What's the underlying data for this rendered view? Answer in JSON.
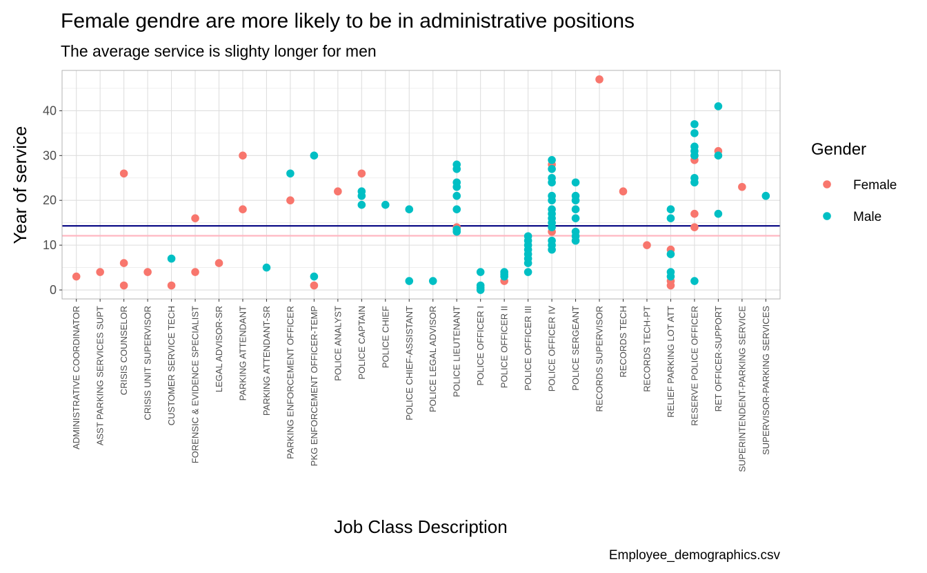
{
  "chart_data": {
    "type": "scatter",
    "title": "Female gendre are more likely to be in administrative positions",
    "subtitle": "The average service is slighty longer for men",
    "xlabel": "Job Class Description",
    "ylabel": "Year of service",
    "caption": "Employee_demographics.csv",
    "ylim": [
      -2,
      49
    ],
    "yticks": [
      0,
      10,
      20,
      30,
      40
    ],
    "grid": true,
    "legend": {
      "title": "Gender",
      "position": "right"
    },
    "categories": [
      "ADMINISTRATIVE COORDINATOR",
      "ASST PARKING SERVICES SUPT",
      "CRISIS COUNSELOR",
      "CRISIS UNIT SUPERVISOR",
      "CUSTOMER SERVICE TECH",
      "FORENSIC & EVIDENCE SPECIALIST",
      "LEGAL ADVISOR-SR",
      "PARKING ATTENDANT",
      "PARKING ATTENDANT-SR",
      "PARKING ENFORCEMENT OFFICER",
      "PKG ENFORCEMENT OFFICER-TEMP",
      "POLICE ANALYST",
      "POLICE CAPTAIN",
      "POLICE CHIEF",
      "POLICE CHIEF-ASSISTANT",
      "POLICE LEGAL ADVISOR",
      "POLICE LIEUTENANT",
      "POLICE OFFICER I",
      "POLICE OFFICER II",
      "POLICE OFFICER III",
      "POLICE OFFICER IV",
      "POLICE SERGEANT",
      "RECORDS SUPERVISOR",
      "RECORDS TECH",
      "RECORDS TECH-PT",
      "RELIEF PARKING LOT ATT",
      "RESERVE POLICE OFFICER",
      "RET OFFICER-SUPPORT",
      "SUPERINTENDENT-PARKING SERVICE",
      "SUPERVISOR-PARKING SERVICES"
    ],
    "series": [
      {
        "name": "Female",
        "color": "#F8766D",
        "points": [
          [
            "ADMINISTRATIVE COORDINATOR",
            3
          ],
          [
            "ASST PARKING SERVICES SUPT",
            4
          ],
          [
            "CRISIS COUNSELOR",
            26
          ],
          [
            "CRISIS COUNSELOR",
            6
          ],
          [
            "CRISIS COUNSELOR",
            1
          ],
          [
            "CRISIS UNIT SUPERVISOR",
            4
          ],
          [
            "CUSTOMER SERVICE TECH",
            1
          ],
          [
            "FORENSIC & EVIDENCE SPECIALIST",
            16
          ],
          [
            "FORENSIC & EVIDENCE SPECIALIST",
            4
          ],
          [
            "LEGAL ADVISOR-SR",
            6
          ],
          [
            "PARKING ATTENDANT",
            30
          ],
          [
            "PARKING ATTENDANT",
            18
          ],
          [
            "PARKING ENFORCEMENT OFFICER",
            20
          ],
          [
            "PKG ENFORCEMENT OFFICER-TEMP",
            1
          ],
          [
            "POLICE ANALYST",
            22
          ],
          [
            "POLICE CAPTAIN",
            26
          ],
          [
            "POLICE LIEUTENANT",
            14
          ],
          [
            "POLICE OFFICER II",
            2
          ],
          [
            "POLICE OFFICER IV",
            28
          ],
          [
            "POLICE OFFICER IV",
            13
          ],
          [
            "RECORDS SUPERVISOR",
            47
          ],
          [
            "RECORDS TECH",
            22
          ],
          [
            "RECORDS TECH-PT",
            10
          ],
          [
            "RELIEF PARKING LOT ATT",
            9
          ],
          [
            "RELIEF PARKING LOT ATT",
            2
          ],
          [
            "RELIEF PARKING LOT ATT",
            1
          ],
          [
            "RESERVE POLICE OFFICER",
            30
          ],
          [
            "RESERVE POLICE OFFICER",
            29
          ],
          [
            "RESERVE POLICE OFFICER",
            17
          ],
          [
            "RESERVE POLICE OFFICER",
            14
          ],
          [
            "RET OFFICER-SUPPORT",
            31
          ],
          [
            "SUPERINTENDENT-PARKING SERVICE",
            23
          ]
        ]
      },
      {
        "name": "Male",
        "color": "#00BFC4",
        "points": [
          [
            "CUSTOMER SERVICE TECH",
            7
          ],
          [
            "PARKING ATTENDANT-SR",
            5
          ],
          [
            "PARKING ENFORCEMENT OFFICER",
            26
          ],
          [
            "PKG ENFORCEMENT OFFICER-TEMP",
            30
          ],
          [
            "PKG ENFORCEMENT OFFICER-TEMP",
            3
          ],
          [
            "POLICE CAPTAIN",
            22
          ],
          [
            "POLICE CAPTAIN",
            21
          ],
          [
            "POLICE CAPTAIN",
            19
          ],
          [
            "POLICE CHIEF",
            19
          ],
          [
            "POLICE CHIEF-ASSISTANT",
            18
          ],
          [
            "POLICE CHIEF-ASSISTANT",
            2
          ],
          [
            "POLICE LEGAL ADVISOR",
            2
          ],
          [
            "POLICE LIEUTENANT",
            28
          ],
          [
            "POLICE LIEUTENANT",
            27
          ],
          [
            "POLICE LIEUTENANT",
            24
          ],
          [
            "POLICE LIEUTENANT",
            23
          ],
          [
            "POLICE LIEUTENANT",
            21
          ],
          [
            "POLICE LIEUTENANT",
            18
          ],
          [
            "POLICE LIEUTENANT",
            13.5
          ],
          [
            "POLICE LIEUTENANT",
            13
          ],
          [
            "POLICE OFFICER I",
            4
          ],
          [
            "POLICE OFFICER I",
            1
          ],
          [
            "POLICE OFFICER I",
            0.5
          ],
          [
            "POLICE OFFICER I",
            0
          ],
          [
            "POLICE OFFICER II",
            4
          ],
          [
            "POLICE OFFICER II",
            3.5
          ],
          [
            "POLICE OFFICER II",
            3
          ],
          [
            "POLICE OFFICER III",
            12
          ],
          [
            "POLICE OFFICER III",
            11
          ],
          [
            "POLICE OFFICER III",
            10
          ],
          [
            "POLICE OFFICER III",
            9
          ],
          [
            "POLICE OFFICER III",
            8
          ],
          [
            "POLICE OFFICER III",
            7
          ],
          [
            "POLICE OFFICER III",
            6
          ],
          [
            "POLICE OFFICER III",
            4
          ],
          [
            "POLICE OFFICER IV",
            29
          ],
          [
            "POLICE OFFICER IV",
            27
          ],
          [
            "POLICE OFFICER IV",
            25
          ],
          [
            "POLICE OFFICER IV",
            24
          ],
          [
            "POLICE OFFICER IV",
            21
          ],
          [
            "POLICE OFFICER IV",
            20
          ],
          [
            "POLICE OFFICER IV",
            18
          ],
          [
            "POLICE OFFICER IV",
            17
          ],
          [
            "POLICE OFFICER IV",
            16
          ],
          [
            "POLICE OFFICER IV",
            15
          ],
          [
            "POLICE OFFICER IV",
            14
          ],
          [
            "POLICE OFFICER IV",
            11
          ],
          [
            "POLICE OFFICER IV",
            10
          ],
          [
            "POLICE OFFICER IV",
            9
          ],
          [
            "POLICE SERGEANT",
            24
          ],
          [
            "POLICE SERGEANT",
            21
          ],
          [
            "POLICE SERGEANT",
            20
          ],
          [
            "POLICE SERGEANT",
            18
          ],
          [
            "POLICE SERGEANT",
            16
          ],
          [
            "POLICE SERGEANT",
            13
          ],
          [
            "POLICE SERGEANT",
            12
          ],
          [
            "POLICE SERGEANT",
            11
          ],
          [
            "RELIEF PARKING LOT ATT",
            18
          ],
          [
            "RELIEF PARKING LOT ATT",
            16
          ],
          [
            "RELIEF PARKING LOT ATT",
            8
          ],
          [
            "RELIEF PARKING LOT ATT",
            4
          ],
          [
            "RELIEF PARKING LOT ATT",
            3
          ],
          [
            "RESERVE POLICE OFFICER",
            37
          ],
          [
            "RESERVE POLICE OFFICER",
            35
          ],
          [
            "RESERVE POLICE OFFICER",
            32
          ],
          [
            "RESERVE POLICE OFFICER",
            31
          ],
          [
            "RESERVE POLICE OFFICER",
            30
          ],
          [
            "RESERVE POLICE OFFICER",
            25
          ],
          [
            "RESERVE POLICE OFFICER",
            24
          ],
          [
            "RESERVE POLICE OFFICER",
            2
          ],
          [
            "RET OFFICER-SUPPORT",
            41
          ],
          [
            "RET OFFICER-SUPPORT",
            30
          ],
          [
            "RET OFFICER-SUPPORT",
            17
          ],
          [
            "SUPERVISOR-PARKING SERVICES",
            21
          ]
        ]
      }
    ],
    "reference_lines": [
      {
        "y": 14.3,
        "color": "#000080"
      },
      {
        "y": 12.1,
        "color": "#FFB6C1"
      }
    ]
  }
}
